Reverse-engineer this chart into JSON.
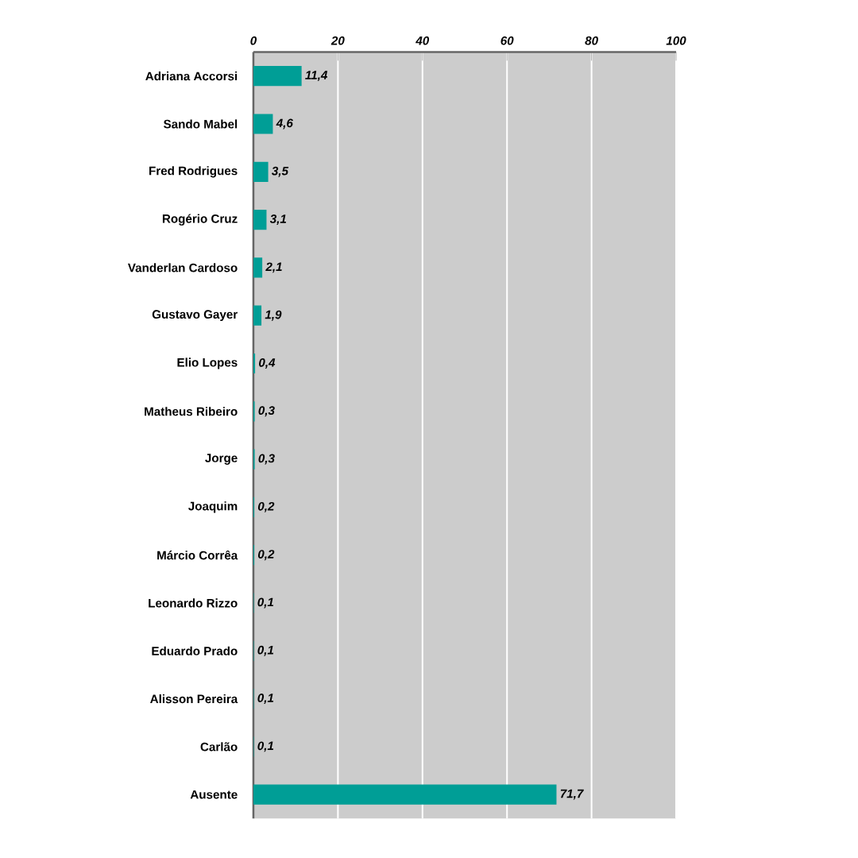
{
  "chart_data": {
    "type": "bar",
    "orientation": "horizontal",
    "categories": [
      "Adriana Accorsi",
      "Sando Mabel",
      "Fred Rodrigues",
      "Rogério Cruz",
      "Vanderlan Cardoso",
      "Gustavo Gayer",
      "Elio Lopes",
      "Matheus Ribeiro",
      "Jorge",
      "Joaquim",
      "Márcio Corrêa",
      "Leonardo Rizzo",
      "Eduardo Prado",
      "Alisson Pereira",
      "Carlão",
      "Ausente"
    ],
    "values": [
      11.4,
      4.6,
      3.5,
      3.1,
      2.1,
      1.9,
      0.4,
      0.3,
      0.3,
      0.2,
      0.2,
      0.1,
      0.1,
      0.1,
      0.1,
      71.7
    ],
    "value_labels": [
      "11,4",
      "4,6",
      "3,5",
      "3,1",
      "2,1",
      "1,9",
      "0,4",
      "0,3",
      "0,3",
      "0,2",
      "0,2",
      "0,1",
      "0,1",
      "0,1",
      "0,1",
      "71,7"
    ],
    "color": "#009e96",
    "xlim": [
      0,
      100
    ],
    "xticks": [
      0,
      20,
      40,
      60,
      80,
      100
    ],
    "grid": "x"
  }
}
